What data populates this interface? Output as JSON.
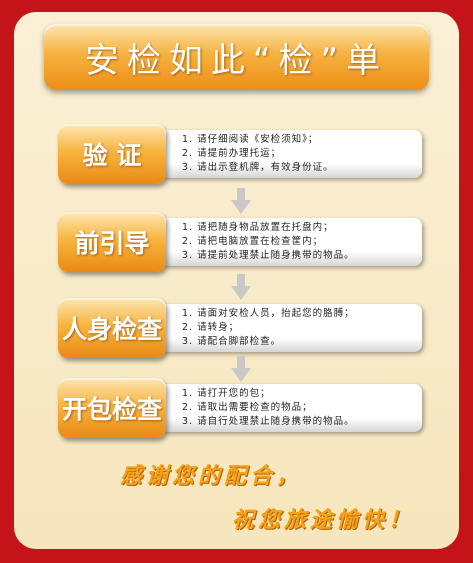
{
  "title": "安检如此“检”单",
  "steps": [
    {
      "label": "验 证",
      "lines": [
        "1. 请仔细阅读《安检须知》；",
        "2. 请提前办理托运；",
        "3. 请出示登机牌，有效身份证。"
      ]
    },
    {
      "label": "前引导",
      "lines": [
        "1. 请把随身物品放置在托盘内；",
        "2. 请把电脑放置在检查筐内；",
        "3. 请提前处理禁止随身携带的物品。"
      ]
    },
    {
      "label": "人身检查",
      "lines": [
        "1. 请面对安检人员，抬起您的胳膊；",
        "2. 请转身；",
        "3. 请配合脚部检查。"
      ]
    },
    {
      "label": "开包检查",
      "lines": [
        "1. 请打开您的包；",
        "2. 请取出需要检查的物品；",
        "3. 请自行处理禁止随身携带的物品。"
      ]
    }
  ],
  "thanks": [
    "感谢您的配合，",
    "祝您旅途愉快！"
  ]
}
